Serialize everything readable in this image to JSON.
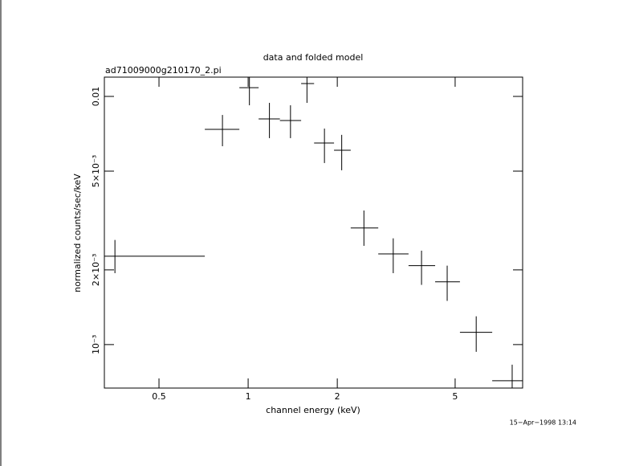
{
  "chart_data": {
    "type": "errorbar",
    "title": "data and folded model",
    "subtitle": "ad71009000g210170_2.pi",
    "xlabel": "channel energy (keV)",
    "ylabel": "normalized counts/sec/keV",
    "annotation": "15−Apr−1998 13:14",
    "xscale": "log",
    "yscale": "log",
    "color": "#000000",
    "xlim": [
      0.327,
      8.45
    ],
    "ylim": [
      0.000668,
      0.01196
    ],
    "xticks": [
      0.5,
      1,
      2,
      5
    ],
    "yticks": [
      {
        "value": 0.01,
        "label": "0.01"
      },
      {
        "value": 0.005,
        "label": "5×10⁻³"
      },
      {
        "value": 0.002,
        "label": "2×10⁻³"
      },
      {
        "value": 0.001,
        "label": "10⁻³"
      }
    ],
    "series": [
      {
        "name": "data",
        "color": "#000000",
        "x": [
          0.355,
          0.819,
          1.01,
          1.18,
          1.39,
          1.58,
          1.81,
          2.07,
          2.46,
          3.09,
          3.85,
          4.7,
          5.89,
          7.79
        ],
        "x_low": [
          0.327,
          0.714,
          0.934,
          1.085,
          1.28,
          1.51,
          1.67,
          1.95,
          2.22,
          2.75,
          3.48,
          4.28,
          5.19,
          6.67
        ],
        "x_high": [
          0.714,
          0.934,
          1.085,
          1.28,
          1.51,
          1.67,
          1.95,
          2.22,
          2.75,
          3.48,
          4.28,
          5.19,
          6.67,
          8.45
        ],
        "values": [
          0.00227,
          0.00737,
          0.01085,
          0.00812,
          0.008,
          0.01127,
          0.00649,
          0.00607,
          0.00295,
          0.00232,
          0.00208,
          0.00179,
          0.00112,
          0.000715
        ],
        "y_low": [
          0.00194,
          0.0063,
          0.00921,
          0.00679,
          0.00679,
          0.00942,
          0.00539,
          0.00504,
          0.0025,
          0.00194,
          0.00174,
          0.0015,
          0.000935,
          0.00062
        ],
        "y_high": [
          0.00264,
          0.00842,
          0.01196,
          0.00942,
          0.00921,
          0.01196,
          0.00742,
          0.007,
          0.00347,
          0.00268,
          0.00239,
          0.00208,
          0.0013,
          0.00083
        ]
      }
    ]
  }
}
